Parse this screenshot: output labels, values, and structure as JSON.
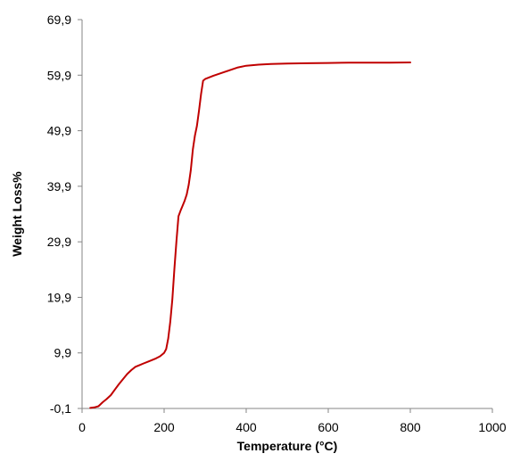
{
  "chart_data": {
    "type": "line",
    "title": "",
    "xlabel": "Temperature (°C)",
    "ylabel": "Weight Loss%",
    "xlim": [
      0,
      1000
    ],
    "ylim": [
      -0.1,
      69.9
    ],
    "x_ticks": [
      0,
      200,
      400,
      600,
      800,
      1000
    ],
    "x_tick_labels": [
      "0",
      "200",
      "400",
      "600",
      "800",
      "1000"
    ],
    "y_ticks": [
      -0.1,
      9.9,
      19.9,
      29.9,
      39.9,
      49.9,
      59.9,
      69.9
    ],
    "y_tick_labels": [
      "-0,1",
      "9,9",
      "19,9",
      "29,9",
      "39,9",
      "49,9",
      "59,9",
      "69,9"
    ],
    "grid": false,
    "legend": "none",
    "series": [
      {
        "color": "#c00000",
        "x": [
          20,
          30,
          40,
          50,
          60,
          70,
          80,
          90,
          100,
          110,
          120,
          130,
          140,
          150,
          160,
          170,
          180,
          190,
          195,
          200,
          205,
          210,
          215,
          220,
          225,
          230,
          235,
          240,
          245,
          250,
          255,
          260,
          265,
          270,
          275,
          280,
          285,
          290,
          295,
          300,
          320,
          340,
          360,
          380,
          400,
          430,
          460,
          500,
          550,
          600,
          650,
          700,
          750,
          800
        ],
        "y": [
          0.0,
          0.1,
          0.3,
          1.0,
          1.6,
          2.3,
          3.3,
          4.3,
          5.2,
          6.1,
          6.8,
          7.4,
          7.7,
          8.0,
          8.3,
          8.6,
          8.9,
          9.3,
          9.6,
          9.9,
          10.6,
          12.5,
          15.5,
          19.5,
          25.0,
          30.0,
          34.5,
          35.5,
          36.4,
          37.3,
          38.4,
          40.2,
          42.8,
          46.5,
          49.0,
          50.8,
          53.5,
          56.5,
          58.9,
          59.2,
          59.8,
          60.3,
          60.8,
          61.3,
          61.6,
          61.8,
          61.9,
          62.0,
          62.05,
          62.1,
          62.15,
          62.15,
          62.15,
          62.2
        ]
      }
    ]
  }
}
